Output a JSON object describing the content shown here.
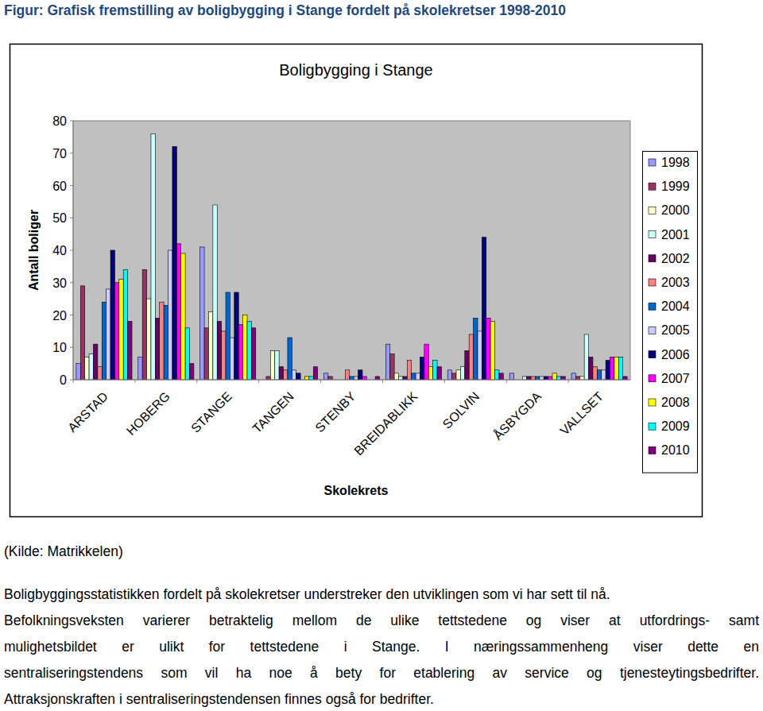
{
  "document": {
    "caption": "Figur: Grafisk fremstilling av boligbygging i Stange fordelt på skolekretser 1998-2010",
    "source": "(Kilde: Matrikkelen)",
    "body_lines": [
      "Boligbyggingsstatistikken fordelt på skolekretser understreker den utviklingen som vi har sett til nå.",
      "Befolkningsveksten varierer betraktelig mellom de ulike tettstedene og viser at utfordrings- samt",
      "mulighetsbildet er ulikt for tettstedene i Stange.  I næringssammenheng viser dette en",
      "sentraliseringstendens som vil ha noe å bety for etablering av service og tjenesteytingsbedrifter.",
      "Attraksjonskraften i sentraliseringstendensen finnes også for bedrifter."
    ]
  },
  "chart_data": {
    "type": "bar",
    "title": "Boligbygging i Stange",
    "x_label": "Skolekrets",
    "y_label": "Antall boliger",
    "categories": [
      "ARSTAD",
      "HOBERG",
      "STANGE",
      "TANGEN",
      "STENBY",
      "BREIDABLIKK",
      "SOLVIN",
      "ÅSBYGDA",
      "VALLSET"
    ],
    "series": [
      {
        "name": "1998",
        "color": "#9999FF",
        "values": [
          5,
          7,
          41,
          0,
          2,
          11,
          3,
          2,
          2
        ]
      },
      {
        "name": "1999",
        "color": "#993366",
        "values": [
          29,
          34,
          16,
          1,
          1,
          8,
          2,
          0,
          1
        ]
      },
      {
        "name": "2000",
        "color": "#FFFFCC",
        "values": [
          7,
          25,
          21,
          9,
          0,
          2,
          3,
          0,
          1
        ]
      },
      {
        "name": "2001",
        "color": "#CCFFFF",
        "values": [
          8,
          76,
          54,
          9,
          0,
          1,
          4,
          1,
          14
        ]
      },
      {
        "name": "2002",
        "color": "#660066",
        "values": [
          11,
          19,
          18,
          4,
          0,
          1,
          9,
          1,
          7
        ]
      },
      {
        "name": "2003",
        "color": "#FF8080",
        "values": [
          4,
          24,
          15,
          3,
          3,
          6,
          14,
          1,
          4
        ]
      },
      {
        "name": "2004",
        "color": "#0066CC",
        "values": [
          24,
          23,
          27,
          13,
          1,
          2,
          19,
          1,
          3
        ]
      },
      {
        "name": "2005",
        "color": "#CCCCFF",
        "values": [
          28,
          40,
          13,
          3,
          1,
          2,
          15,
          1,
          3
        ]
      },
      {
        "name": "2006",
        "color": "#000080",
        "values": [
          40,
          72,
          27,
          2,
          3,
          7,
          44,
          1,
          6
        ]
      },
      {
        "name": "2007",
        "color": "#FF00FF",
        "values": [
          30,
          42,
          17,
          0,
          1,
          11,
          19,
          1,
          7
        ]
      },
      {
        "name": "2008",
        "color": "#FFFF00",
        "values": [
          31,
          39,
          20,
          1,
          0,
          4,
          18,
          2,
          7
        ]
      },
      {
        "name": "2009",
        "color": "#00FFFF",
        "values": [
          34,
          16,
          18,
          1,
          0,
          6,
          3,
          1,
          7
        ]
      },
      {
        "name": "2010",
        "color": "#800080",
        "values": [
          18,
          5,
          16,
          4,
          1,
          4,
          2,
          1,
          1
        ]
      }
    ],
    "ylim": [
      0,
      80
    ],
    "yticks": [
      0,
      10,
      20,
      30,
      40,
      50,
      60,
      70,
      80
    ],
    "grid": false,
    "legend": "right"
  }
}
